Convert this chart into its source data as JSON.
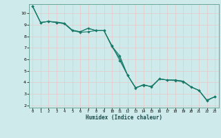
{
  "xlabel": "Humidex (Indice chaleur)",
  "bg_color": "#ceeaea",
  "grid_color": "#e8c8c8",
  "line_color": "#1a7a6a",
  "xlim": [
    -0.5,
    23.5
  ],
  "ylim": [
    1.8,
    10.8
  ],
  "yticks": [
    2,
    3,
    4,
    5,
    6,
    7,
    8,
    9,
    10
  ],
  "xticks": [
    0,
    1,
    2,
    3,
    4,
    5,
    6,
    7,
    8,
    9,
    10,
    11,
    12,
    13,
    14,
    15,
    16,
    17,
    18,
    19,
    20,
    21,
    22,
    23
  ],
  "series1": {
    "x": [
      0,
      1,
      2,
      3,
      4,
      5,
      6,
      7,
      8,
      9,
      10,
      11,
      12,
      13,
      14,
      15,
      16,
      17,
      18,
      19,
      20,
      21,
      22,
      23
    ],
    "y": [
      10.6,
      9.2,
      9.3,
      9.2,
      9.1,
      8.5,
      8.4,
      8.7,
      8.5,
      8.5,
      7.2,
      5.9,
      4.6,
      3.5,
      3.8,
      3.6,
      4.3,
      4.2,
      4.2,
      4.1,
      3.6,
      3.3,
      2.45,
      2.75
    ]
  },
  "series2": {
    "x": [
      0,
      1,
      2,
      3,
      4,
      5,
      6,
      7,
      8,
      9,
      10,
      11,
      12,
      13,
      14,
      15,
      16,
      17,
      18,
      19,
      20,
      21,
      22,
      23
    ],
    "y": [
      10.6,
      9.2,
      9.3,
      9.2,
      9.1,
      8.5,
      8.35,
      8.4,
      8.5,
      8.5,
      7.15,
      6.3,
      4.6,
      3.55,
      3.75,
      3.65,
      4.3,
      4.2,
      4.15,
      4.05,
      3.6,
      3.3,
      2.4,
      2.75
    ]
  },
  "series3": {
    "x": [
      0,
      1,
      2,
      3,
      4,
      5,
      6,
      7,
      8,
      9,
      10,
      11,
      12,
      13,
      14,
      15,
      16,
      17,
      18,
      19,
      20,
      21,
      22,
      23
    ],
    "y": [
      10.6,
      9.2,
      9.3,
      9.25,
      9.15,
      8.55,
      8.4,
      8.7,
      8.5,
      8.5,
      7.1,
      6.1,
      4.6,
      3.5,
      3.8,
      3.6,
      4.3,
      4.2,
      4.2,
      4.1,
      3.6,
      3.3,
      2.45,
      2.75
    ]
  }
}
